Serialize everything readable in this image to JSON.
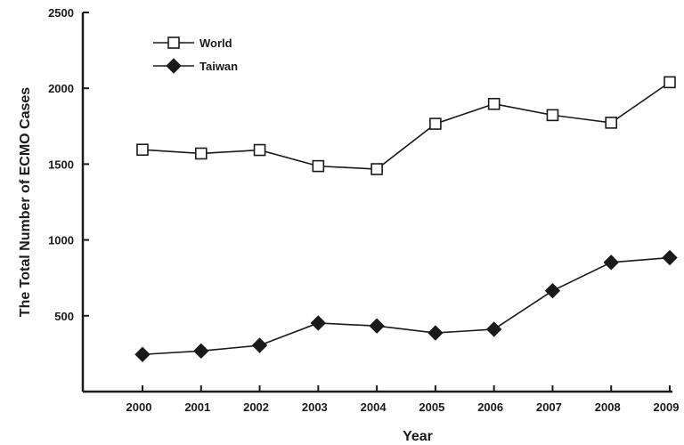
{
  "chart_data": {
    "type": "line",
    "xlabel": "Year",
    "ylabel": "The Total Number of  ECMO Cases",
    "x": [
      "2000",
      "2001",
      "2002",
      "2003",
      "2004",
      "2005",
      "2006",
      "2007",
      "2008",
      "2009"
    ],
    "ylim": [
      0,
      2500
    ],
    "yticks": [
      500,
      1000,
      1500,
      2000,
      2500
    ],
    "grid": false,
    "legend_position": "top-left",
    "series": [
      {
        "name": "World",
        "marker": "open-square",
        "color": "#1a1a1a",
        "values": [
          1595,
          1570,
          1593,
          1487,
          1467,
          1766,
          1897,
          1823,
          1773,
          2040
        ]
      },
      {
        "name": "Taiwan",
        "marker": "filled-diamond",
        "color": "#1a1a1a",
        "values": [
          245,
          268,
          305,
          452,
          433,
          387,
          411,
          665,
          852,
          883
        ]
      }
    ]
  }
}
